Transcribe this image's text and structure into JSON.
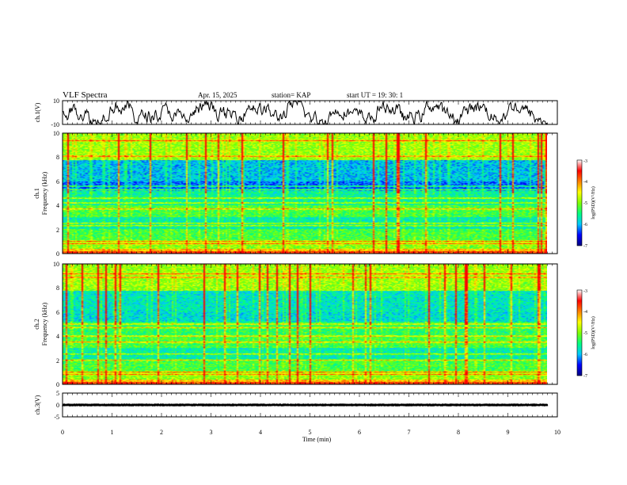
{
  "header": {
    "title": "VLF Spectra",
    "date": "Apr. 15, 2025",
    "station": "station= KAP",
    "start_ut": "start  UT =   19: 30: 1"
  },
  "chart_data": [
    {
      "type": "line",
      "panel": "ch1-waveform",
      "ylabel": "ch.1(V)",
      "ylim": [
        -10,
        10
      ],
      "yticks": [
        "10",
        "-10"
      ]
    },
    {
      "type": "heatmap",
      "panel": "ch1-spectrogram",
      "ylabel_line1": "ch.1",
      "ylabel_line2": "Frequency (kHz)",
      "ylim": [
        0,
        10
      ],
      "yticks": [
        "0",
        "2",
        "4",
        "6",
        "8",
        "10"
      ],
      "colorbar": {
        "label": "log(PSD)(V²/Hz)",
        "range": [
          -7,
          -3
        ],
        "ticks": [
          "-3",
          "-4",
          "-5",
          "-6",
          "-7"
        ]
      },
      "bands_khz": [
        0.3,
        0.8,
        1.0,
        2.3,
        2.5,
        3.7,
        4.2,
        4.6,
        5.3,
        5.6,
        8.1,
        9.4
      ]
    },
    {
      "type": "heatmap",
      "panel": "ch2-spectrogram",
      "ylabel_line1": "ch.2",
      "ylabel_line2": "Frequency (kHz)",
      "ylim": [
        0,
        10
      ],
      "yticks": [
        "0",
        "2",
        "4",
        "6",
        "8",
        "10"
      ],
      "colorbar": {
        "label": "log(PSD)(V²/Hz)",
        "range": [
          -7,
          -3
        ],
        "ticks": [
          "-3",
          "-4",
          "-5",
          "-6",
          "-7"
        ]
      },
      "bands_khz": [
        0.3,
        0.8,
        1.0,
        2.0,
        2.5,
        3.5,
        4.0,
        4.7,
        5.0,
        8.9,
        9.2
      ]
    },
    {
      "type": "line",
      "panel": "ch3-waveform",
      "ylabel": "ch.3(V)",
      "ylim": [
        -5,
        5
      ],
      "yticks": [
        "5",
        "0",
        "-5"
      ],
      "level_v": 0
    }
  ],
  "xaxis": {
    "label": "Time  (min)",
    "range": [
      0,
      10
    ],
    "data_end": 9.8,
    "ticks": [
      "0",
      "1",
      "2",
      "3",
      "4",
      "5",
      "6",
      "7",
      "8",
      "9",
      "10"
    ]
  },
  "colors": {
    "colormap": [
      "#00007f",
      "#0000ff",
      "#00c8ff",
      "#00ff80",
      "#80ff00",
      "#ffff00",
      "#ff8000",
      "#ff0000",
      "#ffffff"
    ],
    "line": "#000000"
  }
}
